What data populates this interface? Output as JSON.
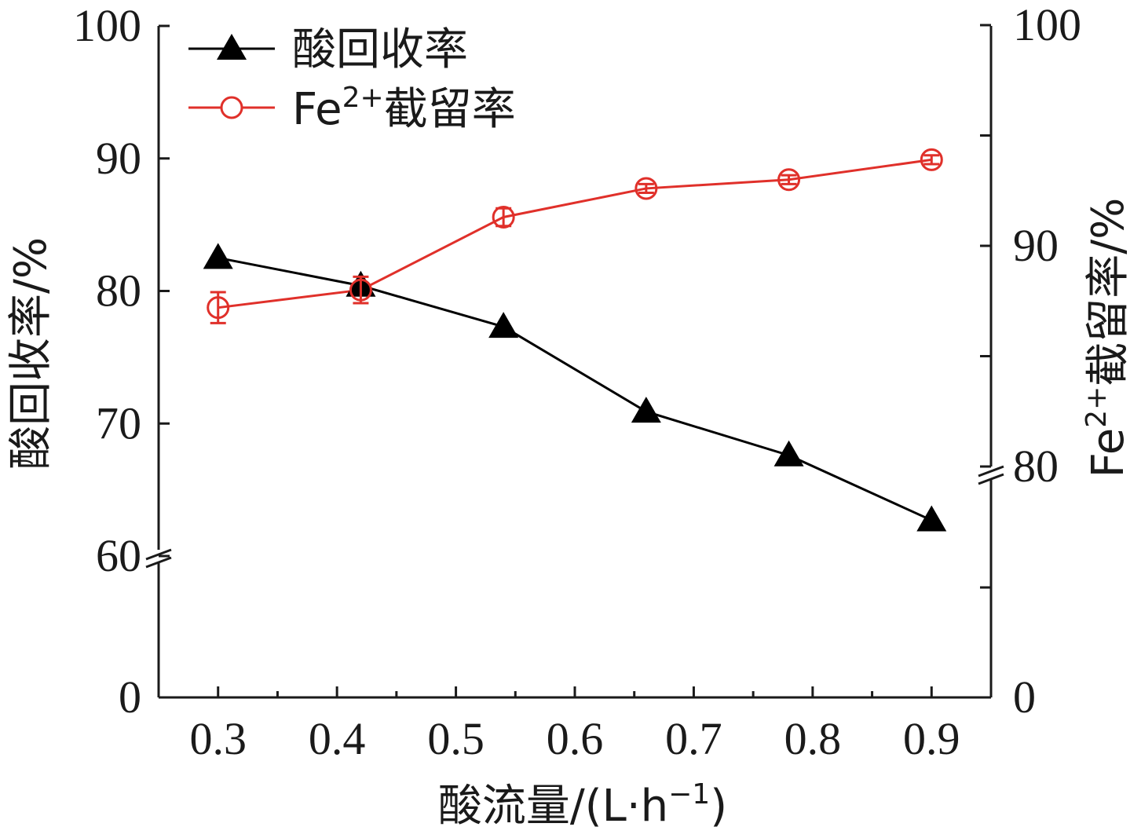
{
  "chart_data": {
    "type": "line",
    "x": [
      0.3,
      0.42,
      0.54,
      0.66,
      0.78,
      0.9
    ],
    "x_ticks": [
      "0.3",
      "0.4",
      "0.5",
      "0.6",
      "0.7",
      "0.8",
      "0.9"
    ],
    "x_tick_values": [
      0.3,
      0.4,
      0.5,
      0.6,
      0.7,
      0.8,
      0.9
    ],
    "xlim": [
      0.25,
      0.95
    ],
    "xlabel_parts": {
      "main": "酸流量/(L·h",
      "sup": "−1",
      "end": ")"
    },
    "ylabel_left": "酸回收率/%",
    "ylabel_right_parts": {
      "main": "Fe",
      "sup": "2+",
      "end": "截留率/%"
    },
    "y_left": {
      "ticks": [
        "0",
        "60",
        "70",
        "80",
        "90",
        "100"
      ],
      "tick_values": [
        0,
        60,
        70,
        80,
        90,
        100
      ],
      "axis_break": "between 0 and 60",
      "ylim": [
        0,
        100
      ]
    },
    "y_right": {
      "ticks": [
        "0",
        "80",
        "90",
        "100"
      ],
      "tick_values": [
        0,
        80,
        90,
        100
      ],
      "axis_break": "between 0 and 80",
      "ylim": [
        0,
        100
      ]
    },
    "series": [
      {
        "name": "酸回收率",
        "axis": "left",
        "marker": "filled-triangle",
        "color": "#000000",
        "values": [
          82.5,
          80.4,
          77.3,
          70.9,
          67.6,
          62.7
        ]
      },
      {
        "name_parts": {
          "main": "Fe",
          "sup": "2+",
          "end": "截留率"
        },
        "axis": "right",
        "marker": "open-circle",
        "color": "#e0302a",
        "values": [
          87.2,
          88.0,
          91.3,
          92.6,
          93.0,
          93.9
        ],
        "error": [
          0.7,
          0.6,
          0.4,
          0.2,
          0.2,
          0.2
        ]
      }
    ],
    "legend": "top-left",
    "grid": false
  }
}
